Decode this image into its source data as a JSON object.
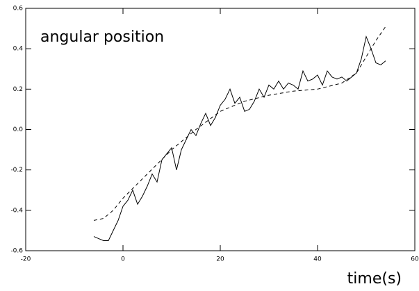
{
  "chart_data": {
    "type": "line",
    "annotation": "angular position",
    "x_label": "time(s)",
    "xlim": [
      -20,
      60
    ],
    "xticks": [
      -20,
      0,
      20,
      40,
      60
    ],
    "ylim": [
      -0.6,
      0.6
    ],
    "yticks": [
      -0.6,
      -0.4,
      -0.2,
      {
        "value": 0,
        "label": "0.0"
      },
      0.2,
      0.4,
      0.6
    ],
    "grid": false,
    "series": [
      {
        "color": "#000000",
        "line_style": "solid",
        "x": [
          -6,
          -5,
          -4,
          -3,
          -2,
          -1,
          0,
          1,
          2,
          3,
          4,
          5,
          6,
          7,
          8,
          9,
          10,
          11,
          12,
          13,
          14,
          15,
          16,
          17,
          18,
          19,
          20,
          21,
          22,
          23,
          24,
          25,
          26,
          27,
          28,
          29,
          30,
          31,
          32,
          33,
          34,
          35,
          36,
          37,
          38,
          39,
          40,
          41,
          42,
          43,
          44,
          45,
          46,
          47,
          48,
          49,
          50,
          51,
          52,
          53,
          54
        ],
        "values": [
          -0.53,
          -0.54,
          -0.55,
          -0.55,
          -0.5,
          -0.45,
          -0.38,
          -0.35,
          -0.3,
          -0.37,
          -0.33,
          -0.28,
          -0.22,
          -0.26,
          -0.15,
          -0.12,
          -0.09,
          -0.2,
          -0.1,
          -0.05,
          0,
          -0.03,
          0.03,
          0.08,
          0.02,
          0.06,
          0.12,
          0.15,
          0.2,
          0.13,
          0.16,
          0.09,
          0.1,
          0.14,
          0.2,
          0.16,
          0.22,
          0.2,
          0.24,
          0.2,
          0.23,
          0.22,
          0.2,
          0.29,
          0.24,
          0.25,
          0.27,
          0.22,
          0.29,
          0.26,
          0.25,
          0.26,
          0.24,
          0.26,
          0.28,
          0.35,
          0.46,
          0.4,
          0.33,
          0.32,
          0.34
        ]
      },
      {
        "color": "#000000",
        "line_style": "dashed",
        "x": [
          -6,
          -4,
          -2,
          0,
          5,
          10,
          15,
          20,
          25,
          30,
          35,
          40,
          45,
          48,
          50,
          52,
          54
        ],
        "values": [
          -0.45,
          -0.44,
          -0.4,
          -0.34,
          -0.22,
          -0.1,
          0,
          0.09,
          0.14,
          0.17,
          0.19,
          0.2,
          0.23,
          0.28,
          0.36,
          0.44,
          0.51
        ]
      }
    ]
  }
}
